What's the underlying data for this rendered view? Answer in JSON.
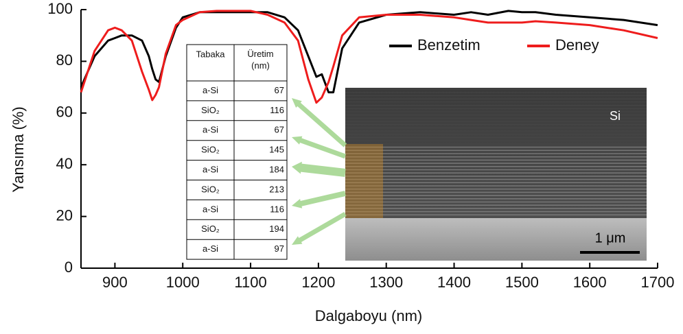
{
  "chart_data": {
    "type": "line",
    "x_label": "Dalgaboyu (nm)",
    "y_label": "Yansıma (%)",
    "x": [
      850,
      870,
      890,
      900,
      910,
      925,
      940,
      950,
      955,
      960,
      965,
      975,
      990,
      1000,
      1025,
      1050,
      1100,
      1125,
      1150,
      1170,
      1185,
      1197,
      1205,
      1215,
      1222,
      1235,
      1260,
      1300,
      1350,
      1400,
      1425,
      1450,
      1480,
      1500,
      1520,
      1550,
      1600,
      1650,
      1700
    ],
    "series": [
      {
        "name": "Benzetim",
        "color": "#000000",
        "values": [
          70,
          82,
          88,
          89,
          90,
          90,
          88,
          82,
          77,
          73,
          72,
          82,
          93,
          97,
          99,
          99,
          99,
          99,
          97,
          92,
          82,
          74,
          75,
          68,
          68,
          85,
          95,
          98,
          99,
          98,
          99,
          98,
          99.5,
          99,
          99,
          98,
          97,
          96,
          94
        ]
      },
      {
        "name": "Deney",
        "color": "#ee1c1c",
        "values": [
          68,
          84,
          92,
          93,
          92,
          88,
          76,
          69,
          65,
          67,
          70,
          83,
          94,
          96,
          99,
          99.5,
          99.5,
          98,
          95,
          88,
          73,
          64,
          66,
          72,
          78,
          90,
          97,
          98,
          98,
          97,
          96,
          95,
          95,
          95,
          95.5,
          95,
          94,
          92,
          89
        ]
      }
    ],
    "xlim": [
      850,
      1700
    ],
    "xticks": [
      900,
      1000,
      1100,
      1200,
      1300,
      1400,
      1500,
      1600,
      1700
    ],
    "ylim": [
      0,
      100
    ],
    "yticks": [
      0,
      20,
      40,
      60,
      80,
      100
    ],
    "legend": "upper right"
  },
  "table": {
    "header": [
      "Tabaka",
      "Üretim (nm)"
    ],
    "rows": [
      [
        "a-Si",
        67
      ],
      [
        "SiO₂",
        116
      ],
      [
        "a-Si",
        67
      ],
      [
        "SiO₂",
        145
      ],
      [
        "a-Si",
        184
      ],
      [
        "SiO₂",
        213
      ],
      [
        "a-Si",
        116
      ],
      [
        "SiO₂",
        194
      ],
      [
        "a-Si",
        97
      ]
    ]
  },
  "inset": {
    "material": "Si",
    "scale_bar": "1 μm"
  }
}
